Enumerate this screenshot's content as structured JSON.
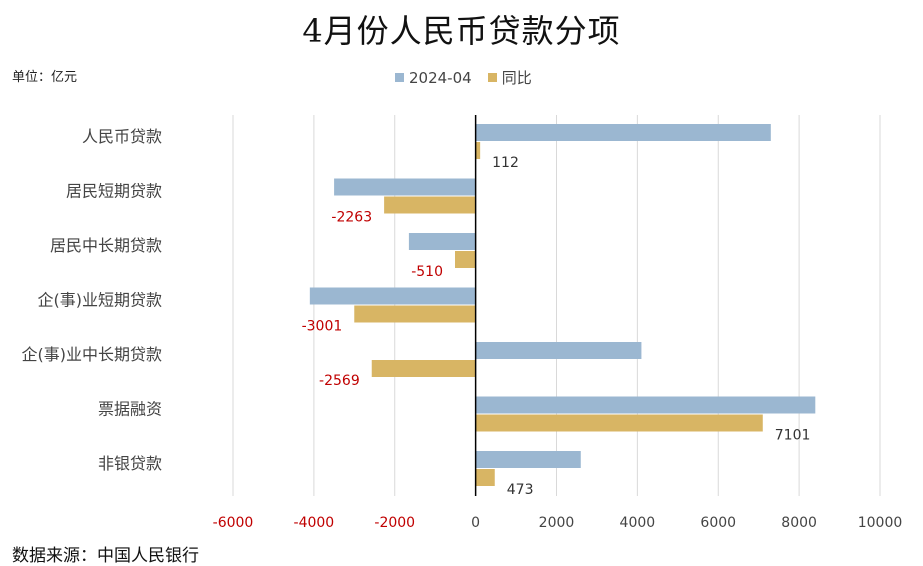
{
  "chart_data": {
    "type": "bar",
    "orientation": "horizontal",
    "title": "4月份人民币贷款分项",
    "unit_label": "单位：亿元",
    "source": "数据来源：中国人民银行",
    "categories": [
      "人民币贷款",
      "居民短期贷款",
      "居民中长期贷款",
      "企(事)业短期贷款",
      "企(事)业中长期贷款",
      "票据融资",
      "非银贷款"
    ],
    "series": [
      {
        "name": "2024-04",
        "color": "#9bb7d1",
        "values": [
          7300,
          -3500,
          -1650,
          -4100,
          4100,
          8400,
          2600
        ]
      },
      {
        "name": "同比",
        "color": "#d8b564",
        "values": [
          112,
          -2263,
          -510,
          -3001,
          -2569,
          7101,
          473
        ]
      }
    ],
    "data_labels": [
      "112",
      "-2263",
      "-510",
      "-3001",
      "-2569",
      "7101",
      "473"
    ],
    "xlim": [
      -6000,
      10000
    ],
    "xticks": [
      "-6000",
      "-4000",
      "-2000",
      "0",
      "2000",
      "4000",
      "6000",
      "8000",
      "10000"
    ],
    "negative_label_color": "#c00000",
    "positive_label_color": "#333333",
    "grid": "vertical",
    "legend_position": "top"
  }
}
